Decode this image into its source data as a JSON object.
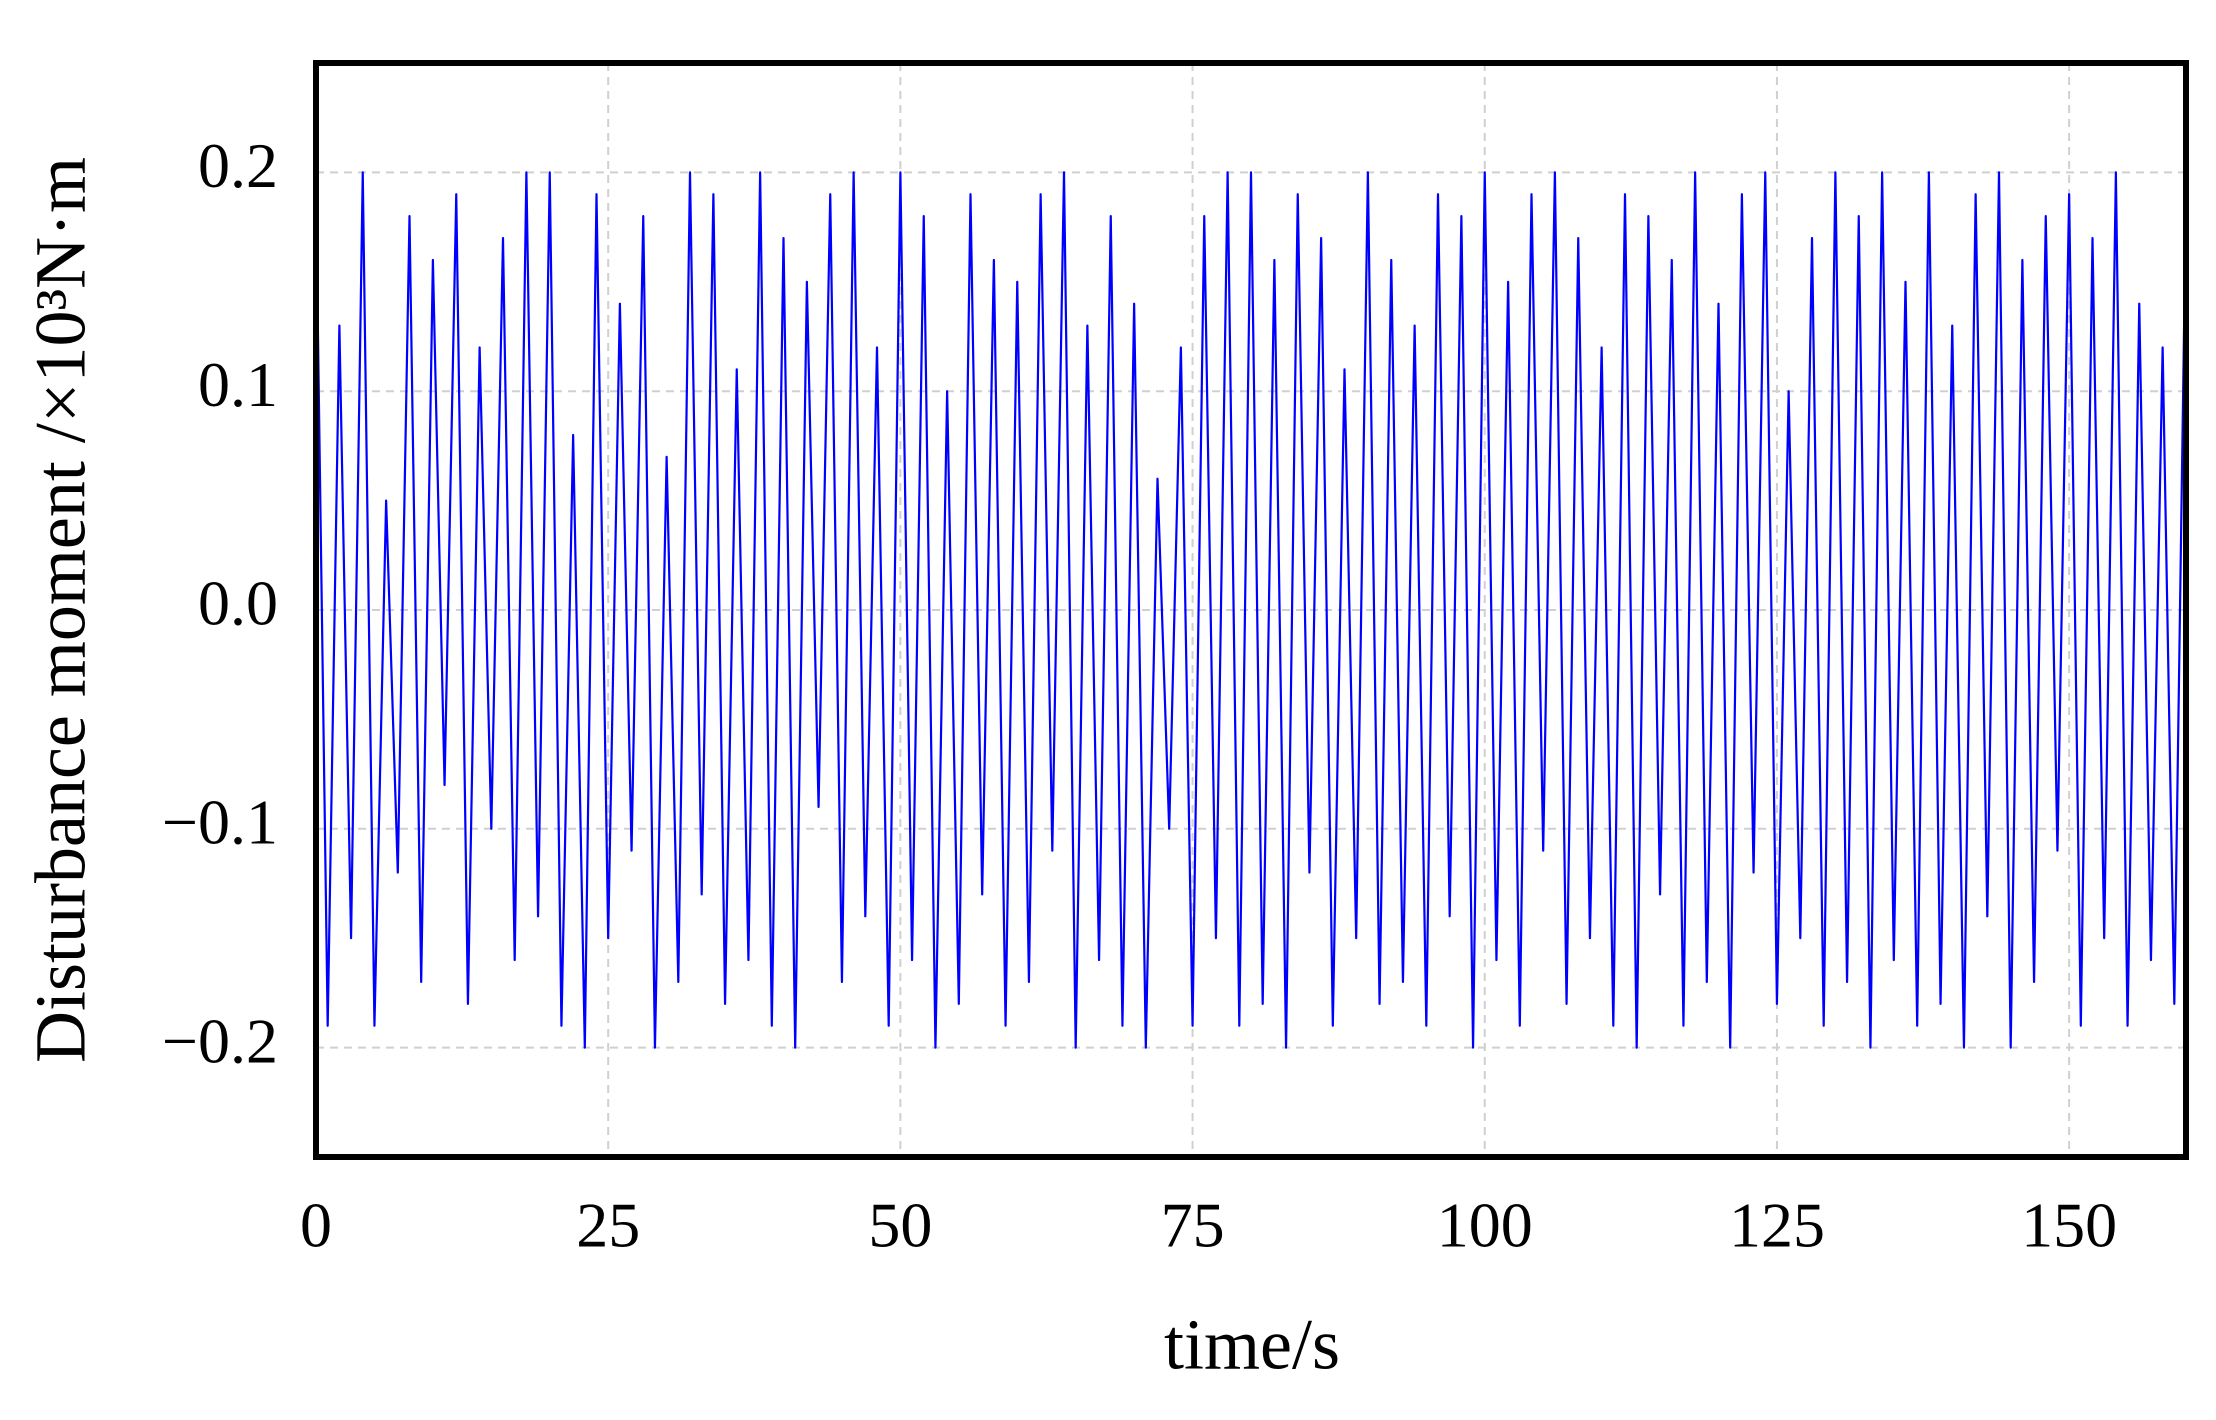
{
  "chart_data": {
    "type": "line",
    "x_label": "time/s",
    "y_label": "Disturbance moment /×10³N·m",
    "color": "#0000ff",
    "grid": true,
    "xlim": [
      0,
      160
    ],
    "ylim": [
      -0.25,
      0.25
    ],
    "xticks": [
      0,
      25,
      50,
      75,
      100,
      125,
      150
    ],
    "yticks": [
      0.2,
      0.1,
      {
        "value": 0,
        "label": "0.0"
      },
      {
        "value": -0.1,
        "label": "−0.1"
      },
      {
        "value": -0.2,
        "label": "−0.2"
      }
    ],
    "x": [
      0,
      1,
      2,
      3,
      4,
      5,
      6,
      7,
      8,
      9,
      10,
      11,
      12,
      13,
      14,
      15,
      16,
      17,
      18,
      19,
      20,
      21,
      22,
      23,
      24,
      25,
      26,
      27,
      28,
      29,
      30,
      31,
      32,
      33,
      34,
      35,
      36,
      37,
      38,
      39,
      40,
      41,
      42,
      43,
      44,
      45,
      46,
      47,
      48,
      49,
      50,
      51,
      52,
      53,
      54,
      55,
      56,
      57,
      58,
      59,
      60,
      61,
      62,
      63,
      64,
      65,
      66,
      67,
      68,
      69,
      70,
      71,
      72,
      73,
      74,
      75,
      76,
      77,
      78,
      79,
      80,
      81,
      82,
      83,
      84,
      85,
      86,
      87,
      88,
      89,
      90,
      91,
      92,
      93,
      94,
      95,
      96,
      97,
      98,
      99,
      100,
      101,
      102,
      103,
      104,
      105,
      106,
      107,
      108,
      109,
      110,
      111,
      112,
      113,
      114,
      115,
      116,
      117,
      118,
      119,
      120,
      121,
      122,
      123,
      124,
      125,
      126,
      127,
      128,
      129,
      130,
      131,
      132,
      133,
      134,
      135,
      136,
      137,
      138,
      139,
      140,
      141,
      142,
      143,
      144,
      145,
      146,
      147,
      148,
      149,
      150,
      151,
      152,
      153,
      154,
      155,
      156,
      157,
      158,
      159,
      160
    ],
    "values": [
      0.19,
      -0.19,
      0.13,
      -0.15,
      0.2,
      -0.19,
      0.05,
      -0.12,
      0.18,
      -0.17,
      0.16,
      -0.08,
      0.19,
      -0.18,
      0.12,
      -0.1,
      0.17,
      -0.16,
      0.2,
      -0.14,
      0.2,
      -0.19,
      0.08,
      -0.2,
      0.19,
      -0.15,
      0.14,
      -0.11,
      0.18,
      -0.2,
      0.07,
      -0.17,
      0.2,
      -0.13,
      0.19,
      -0.18,
      0.11,
      -0.16,
      0.2,
      -0.19,
      0.17,
      -0.2,
      0.15,
      -0.09,
      0.19,
      -0.17,
      0.2,
      -0.14,
      0.12,
      -0.19,
      0.2,
      -0.16,
      0.18,
      -0.2,
      0.1,
      -0.18,
      0.19,
      -0.13,
      0.16,
      -0.19,
      0.15,
      -0.17,
      0.19,
      -0.11,
      0.2,
      -0.2,
      0.13,
      -0.16,
      0.18,
      -0.19,
      0.14,
      -0.2,
      0.06,
      -0.1,
      0.12,
      -0.19,
      0.18,
      -0.15,
      0.2,
      -0.19,
      0.2,
      -0.18,
      0.16,
      -0.2,
      0.19,
      -0.12,
      0.17,
      -0.19,
      0.11,
      -0.15,
      0.2,
      -0.18,
      0.16,
      -0.17,
      0.13,
      -0.19,
      0.19,
      -0.14,
      0.18,
      -0.2,
      0.2,
      -0.16,
      0.15,
      -0.19,
      0.19,
      -0.11,
      0.2,
      -0.18,
      0.17,
      -0.15,
      0.12,
      -0.19,
      0.19,
      -0.2,
      0.18,
      -0.13,
      0.16,
      -0.19,
      0.2,
      -0.17,
      0.14,
      -0.2,
      0.19,
      -0.12,
      0.2,
      -0.18,
      0.1,
      -0.15,
      0.17,
      -0.19,
      0.2,
      -0.17,
      0.18,
      -0.2,
      0.2,
      -0.16,
      0.15,
      -0.19,
      0.2,
      -0.18,
      0.13,
      -0.2,
      0.19,
      -0.14,
      0.2,
      -0.2,
      0.16,
      -0.17,
      0.18,
      -0.11,
      0.19,
      -0.19,
      0.17,
      -0.15,
      0.2,
      -0.19,
      0.14,
      -0.16,
      0.12,
      -0.18,
      0.19
    ]
  }
}
